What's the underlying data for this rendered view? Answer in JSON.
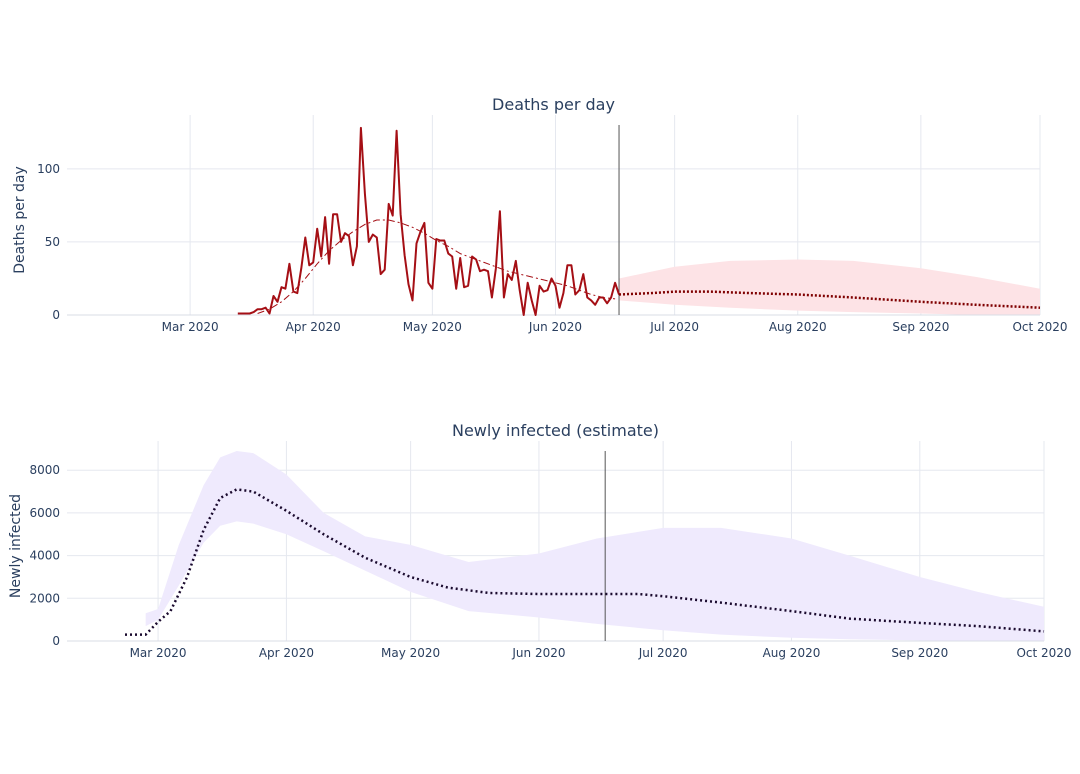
{
  "chart_data": [
    {
      "type": "line",
      "title": "Deaths per day",
      "xlabel": "",
      "ylabel": "Deaths per day",
      "xlim": [
        "2020-01-30",
        "2020-10-01"
      ],
      "ylim": [
        0,
        130
      ],
      "x_ticks": [
        "Mar 2020",
        "Apr 2020",
        "May 2020",
        "Jun 2020",
        "Jul 2020",
        "Aug 2020",
        "Sep 2020",
        "Oct 2020"
      ],
      "x_tick_dates": [
        "2020-03-01",
        "2020-04-01",
        "2020-05-01",
        "2020-06-01",
        "2020-07-01",
        "2020-08-01",
        "2020-09-01",
        "2020-10-01"
      ],
      "y_ticks": [
        0,
        50,
        100
      ],
      "grid": true,
      "legend": "none",
      "vline_date": "2020-06-17",
      "colors": {
        "observed": "#a50f15",
        "fitted": "#a50f15",
        "forecast": "#7f0000",
        "band": "#fde3e6",
        "vline": "#555555",
        "grid": "#e5e8ef"
      },
      "series": [
        {
          "style": "solid",
          "x": [
            "2020-03-13",
            "2020-03-14",
            "2020-03-15",
            "2020-03-16",
            "2020-03-17",
            "2020-03-18",
            "2020-03-19",
            "2020-03-20",
            "2020-03-21",
            "2020-03-22",
            "2020-03-23",
            "2020-03-24",
            "2020-03-25",
            "2020-03-26",
            "2020-03-27",
            "2020-03-28",
            "2020-03-29",
            "2020-03-30",
            "2020-03-31",
            "2020-04-01",
            "2020-04-02",
            "2020-04-03",
            "2020-04-04",
            "2020-04-05",
            "2020-04-06",
            "2020-04-07",
            "2020-04-08",
            "2020-04-09",
            "2020-04-10",
            "2020-04-11",
            "2020-04-12",
            "2020-04-13",
            "2020-04-14",
            "2020-04-15",
            "2020-04-16",
            "2020-04-17",
            "2020-04-18",
            "2020-04-19",
            "2020-04-20",
            "2020-04-21",
            "2020-04-22",
            "2020-04-23",
            "2020-04-24",
            "2020-04-25",
            "2020-04-26",
            "2020-04-27",
            "2020-04-28",
            "2020-04-29",
            "2020-04-30",
            "2020-05-01",
            "2020-05-02",
            "2020-05-03",
            "2020-05-04",
            "2020-05-05",
            "2020-05-06",
            "2020-05-07",
            "2020-05-08",
            "2020-05-09",
            "2020-05-10",
            "2020-05-11",
            "2020-05-12",
            "2020-05-13",
            "2020-05-14",
            "2020-05-15",
            "2020-05-16",
            "2020-05-17",
            "2020-05-18",
            "2020-05-19",
            "2020-05-20",
            "2020-05-21",
            "2020-05-22",
            "2020-05-23",
            "2020-05-24",
            "2020-05-25",
            "2020-05-26",
            "2020-05-27",
            "2020-05-28",
            "2020-05-29",
            "2020-05-30",
            "2020-05-31",
            "2020-06-01",
            "2020-06-02",
            "2020-06-03",
            "2020-06-04",
            "2020-06-05",
            "2020-06-06",
            "2020-06-07",
            "2020-06-08",
            "2020-06-09",
            "2020-06-10",
            "2020-06-11",
            "2020-06-12",
            "2020-06-13",
            "2020-06-14",
            "2020-06-15",
            "2020-06-16",
            "2020-06-17"
          ],
          "values": [
            1,
            1,
            1,
            1,
            2,
            4,
            4,
            5,
            1,
            13,
            9,
            19,
            18,
            35,
            16,
            15,
            32,
            53,
            34,
            36,
            59,
            40,
            67,
            35,
            69,
            69,
            50,
            56,
            54,
            34,
            47,
            128,
            83,
            50,
            55,
            53,
            28,
            31,
            76,
            68,
            126,
            69,
            41,
            21,
            10,
            49,
            57,
            63,
            22,
            18,
            52,
            51,
            51,
            42,
            40,
            18,
            39,
            19,
            20,
            40,
            38,
            30,
            31,
            30,
            12,
            32,
            71,
            12,
            28,
            24,
            37,
            17,
            0,
            22,
            10,
            0,
            20,
            16,
            17,
            25,
            20,
            5,
            15,
            34,
            34,
            14,
            17,
            28,
            12,
            10,
            7,
            12,
            12,
            8,
            12,
            22,
            14
          ]
        },
        {
          "style": "dashdot",
          "x": [
            "2020-03-18",
            "2020-03-21",
            "2020-03-24",
            "2020-03-27",
            "2020-03-30",
            "2020-04-02",
            "2020-04-05",
            "2020-04-08",
            "2020-04-11",
            "2020-04-14",
            "2020-04-17",
            "2020-04-20",
            "2020-04-23",
            "2020-04-26",
            "2020-04-29",
            "2020-05-02",
            "2020-05-05",
            "2020-05-08",
            "2020-05-11",
            "2020-05-14",
            "2020-05-17",
            "2020-05-20",
            "2020-05-23",
            "2020-05-26",
            "2020-05-29",
            "2020-06-01",
            "2020-06-04",
            "2020-06-07",
            "2020-06-10",
            "2020-06-13",
            "2020-06-16"
          ],
          "values": [
            1,
            4,
            9,
            16,
            25,
            35,
            44,
            51,
            57,
            62,
            65,
            65,
            63,
            60,
            56,
            51,
            47,
            42,
            39,
            36,
            33,
            30,
            28,
            26,
            24,
            22,
            20,
            17,
            14,
            12,
            11
          ]
        },
        {
          "style": "dotted",
          "x": [
            "2020-06-17",
            "2020-06-25",
            "2020-07-01",
            "2020-07-10",
            "2020-07-20",
            "2020-08-01",
            "2020-08-15",
            "2020-09-01",
            "2020-09-15",
            "2020-10-01"
          ],
          "values": [
            14,
            15,
            16,
            16,
            15,
            14,
            12,
            9,
            7,
            5
          ]
        }
      ],
      "band": {
        "x": [
          "2020-06-17",
          "2020-07-01",
          "2020-07-15",
          "2020-08-01",
          "2020-08-15",
          "2020-09-01",
          "2020-09-15",
          "2020-10-01"
        ],
        "upper": [
          25,
          33,
          37,
          38,
          37,
          32,
          26,
          18
        ],
        "lower": [
          10,
          7,
          5,
          3,
          2,
          1,
          0,
          0
        ]
      }
    },
    {
      "type": "line",
      "title": "Newly infected (estimate)",
      "xlabel": "",
      "ylabel": "Newly infected",
      "xlim": [
        "2020-02-08",
        "2020-10-01"
      ],
      "ylim": [
        0,
        8900
      ],
      "x_ticks": [
        "Mar 2020",
        "Apr 2020",
        "May 2020",
        "Jun 2020",
        "Jul 2020",
        "Aug 2020",
        "Sep 2020",
        "Oct 2020"
      ],
      "x_tick_dates": [
        "2020-03-01",
        "2020-04-01",
        "2020-05-01",
        "2020-06-01",
        "2020-07-01",
        "2020-08-01",
        "2020-09-01",
        "2020-10-01"
      ],
      "y_ticks": [
        0,
        2000,
        4000,
        6000,
        8000
      ],
      "grid": true,
      "legend": "none",
      "vline_date": "2020-06-17",
      "colors": {
        "line": "#1a0a2e",
        "band": "#efeafd",
        "vline": "#555555",
        "grid": "#e5e8ef"
      },
      "series": [
        {
          "style": "dotted",
          "x": [
            "2020-02-22",
            "2020-02-27",
            "2020-03-01",
            "2020-03-04",
            "2020-03-08",
            "2020-03-12",
            "2020-03-16",
            "2020-03-20",
            "2020-03-24",
            "2020-04-01",
            "2020-04-10",
            "2020-04-20",
            "2020-05-01",
            "2020-05-10",
            "2020-05-20",
            "2020-06-01",
            "2020-06-15",
            "2020-06-25",
            "2020-07-01",
            "2020-07-15",
            "2020-08-01",
            "2020-08-15",
            "2020-09-01",
            "2020-09-15",
            "2020-10-01"
          ],
          "values": [
            300,
            300,
            900,
            1400,
            3000,
            5200,
            6700,
            7100,
            7000,
            6100,
            5000,
            3900,
            3000,
            2500,
            2250,
            2200,
            2200,
            2200,
            2100,
            1800,
            1400,
            1050,
            850,
            700,
            450
          ]
        }
      ],
      "band": {
        "x": [
          "2020-02-27",
          "2020-03-01",
          "2020-03-06",
          "2020-03-12",
          "2020-03-16",
          "2020-03-20",
          "2020-03-24",
          "2020-04-01",
          "2020-04-10",
          "2020-04-20",
          "2020-05-01",
          "2020-05-15",
          "2020-06-01",
          "2020-06-15",
          "2020-07-01",
          "2020-07-15",
          "2020-08-01",
          "2020-08-15",
          "2020-09-01",
          "2020-09-15",
          "2020-10-01"
        ],
        "upper": [
          1300,
          1500,
          4500,
          7300,
          8600,
          8900,
          8800,
          7800,
          6000,
          4900,
          4500,
          3700,
          4100,
          4800,
          5300,
          5300,
          4800,
          4000,
          3000,
          2300,
          1600
        ],
        "lower": [
          700,
          1000,
          2600,
          4600,
          5400,
          5600,
          5500,
          5000,
          4200,
          3300,
          2300,
          1400,
          1100,
          800,
          500,
          300,
          150,
          80,
          30,
          10,
          0
        ]
      }
    }
  ]
}
